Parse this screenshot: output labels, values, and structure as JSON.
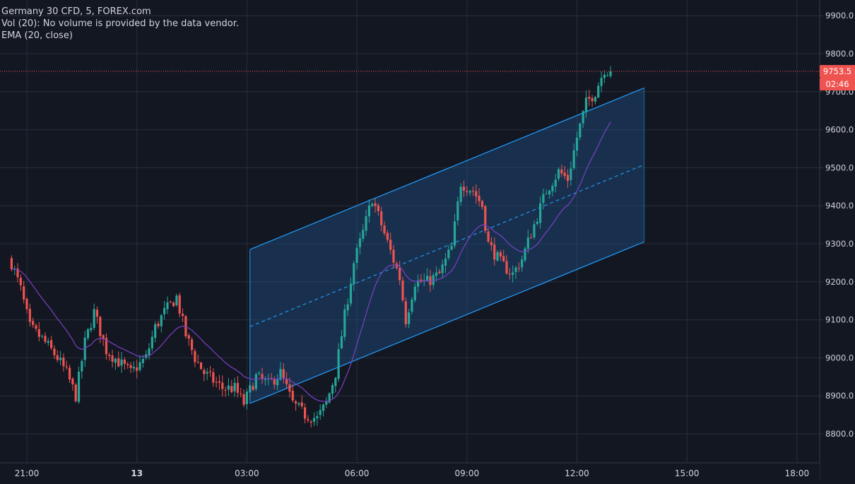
{
  "legend": {
    "symbol": "Germany 30 CFD, 5, FOREX.com",
    "volume": "Vol (20): No volume is provided by the data vendor.",
    "ema": "EMA (20, close)"
  },
  "current_price": {
    "label": "9753.5",
    "countdown": "02:46",
    "color": "#ef5350"
  },
  "colors": {
    "background": "#131722",
    "grid": "#2a2e39",
    "axis_text": "#d1d4dc",
    "up": "#26a69a",
    "down": "#ef5350",
    "ema": "#7b3fc4",
    "channel_line": "#2196f3",
    "channel_fill": "#1f4f82"
  },
  "chart_data": {
    "type": "candlestick",
    "title": "Germany 30 CFD, 5, FOREX.com",
    "ylim": [
      8730,
      9950
    ],
    "y_ticks": [
      8800,
      8900,
      9000,
      9100,
      9200,
      9300,
      9400,
      9500,
      9600,
      9700,
      9800,
      9900
    ],
    "y_tick_labels": [
      "8800.0",
      "8900.0",
      "9000.0",
      "9100.0",
      "9200.0",
      "9300.0",
      "9400.0",
      "9500.0",
      "9600.0",
      "9700.0",
      "9800.0",
      "9900.0"
    ],
    "x_range": [
      "20:35",
      "19:25"
    ],
    "x_ticks": [
      {
        "t": "21:00",
        "label": "21:00",
        "bold": false
      },
      {
        "t": "24:00",
        "label": "13",
        "bold": true
      },
      {
        "t": "27:00",
        "label": "03:00",
        "bold": false
      },
      {
        "t": "30:00",
        "label": "06:00",
        "bold": false
      },
      {
        "t": "33:00",
        "label": "09:00",
        "bold": false
      },
      {
        "t": "36:00",
        "label": "12:00",
        "bold": false
      },
      {
        "t": "39:00",
        "label": "15:00",
        "bold": false
      },
      {
        "t": "42:00",
        "label": "18:00",
        "bold": false
      }
    ],
    "series_anchors": [
      {
        "t": "20:35",
        "c": 9250
      },
      {
        "t": "20:50",
        "c": 9180
      },
      {
        "t": "21:05",
        "c": 9080
      },
      {
        "t": "21:25",
        "c": 9050
      },
      {
        "t": "21:50",
        "c": 9000
      },
      {
        "t": "22:05",
        "c": 8960
      },
      {
        "t": "22:20",
        "c": 8900
      },
      {
        "t": "22:35",
        "c": 9040
      },
      {
        "t": "22:50",
        "c": 9120
      },
      {
        "t": "23:10",
        "c": 9020
      },
      {
        "t": "23:30",
        "c": 8990
      },
      {
        "t": "23:50",
        "c": 8960
      },
      {
        "t": "24:15",
        "c": 9000
      },
      {
        "t": "24:30",
        "c": 9080
      },
      {
        "t": "24:45",
        "c": 9120
      },
      {
        "t": "25:05",
        "c": 9160
      },
      {
        "t": "25:20",
        "c": 9060
      },
      {
        "t": "25:35",
        "c": 9000
      },
      {
        "t": "25:50",
        "c": 8960
      },
      {
        "t": "26:20",
        "c": 8920
      },
      {
        "t": "26:40",
        "c": 8920
      },
      {
        "t": "26:55",
        "c": 8880
      },
      {
        "t": "27:15",
        "c": 8950
      },
      {
        "t": "27:35",
        "c": 8930
      },
      {
        "t": "27:55",
        "c": 8960
      },
      {
        "t": "28:15",
        "c": 8880
      },
      {
        "t": "28:35",
        "c": 8850
      },
      {
        "t": "28:55",
        "c": 8840
      },
      {
        "t": "29:10",
        "c": 8880
      },
      {
        "t": "29:25",
        "c": 8960
      },
      {
        "t": "29:40",
        "c": 9110
      },
      {
        "t": "29:55",
        "c": 9250
      },
      {
        "t": "30:10",
        "c": 9330
      },
      {
        "t": "30:25",
        "c": 9420
      },
      {
        "t": "30:40",
        "c": 9350
      },
      {
        "t": "30:55",
        "c": 9280
      },
      {
        "t": "31:10",
        "c": 9210
      },
      {
        "t": "31:20",
        "c": 9100
      },
      {
        "t": "31:35",
        "c": 9200
      },
      {
        "t": "31:55",
        "c": 9200
      },
      {
        "t": "32:15",
        "c": 9220
      },
      {
        "t": "32:35",
        "c": 9290
      },
      {
        "t": "32:50",
        "c": 9460
      },
      {
        "t": "33:10",
        "c": 9440
      },
      {
        "t": "33:25",
        "c": 9400
      },
      {
        "t": "33:35",
        "c": 9300
      },
      {
        "t": "33:55",
        "c": 9250
      },
      {
        "t": "34:15",
        "c": 9220
      },
      {
        "t": "34:30",
        "c": 9260
      },
      {
        "t": "34:50",
        "c": 9350
      },
      {
        "t": "35:10",
        "c": 9440
      },
      {
        "t": "35:30",
        "c": 9490
      },
      {
        "t": "35:45",
        "c": 9470
      },
      {
        "t": "36:00",
        "c": 9580
      },
      {
        "t": "36:15",
        "c": 9670
      },
      {
        "t": "36:30",
        "c": 9700
      },
      {
        "t": "36:45",
        "c": 9760
      },
      {
        "t": "36:55",
        "c": 9750
      }
    ],
    "channel": {
      "lower": {
        "start": {
          "t": "27:05",
          "v": 8880
        },
        "end": {
          "t": "37:50",
          "v": 9305
        }
      },
      "upper": {
        "start": {
          "t": "27:05",
          "v": 9285
        },
        "end": {
          "t": "37:50",
          "v": 9710
        }
      },
      "median": {
        "start": {
          "t": "27:05",
          "v": 9082
        },
        "end": {
          "t": "37:50",
          "v": 9508
        }
      }
    },
    "ema_period": 20,
    "last_price": 9753.5
  }
}
